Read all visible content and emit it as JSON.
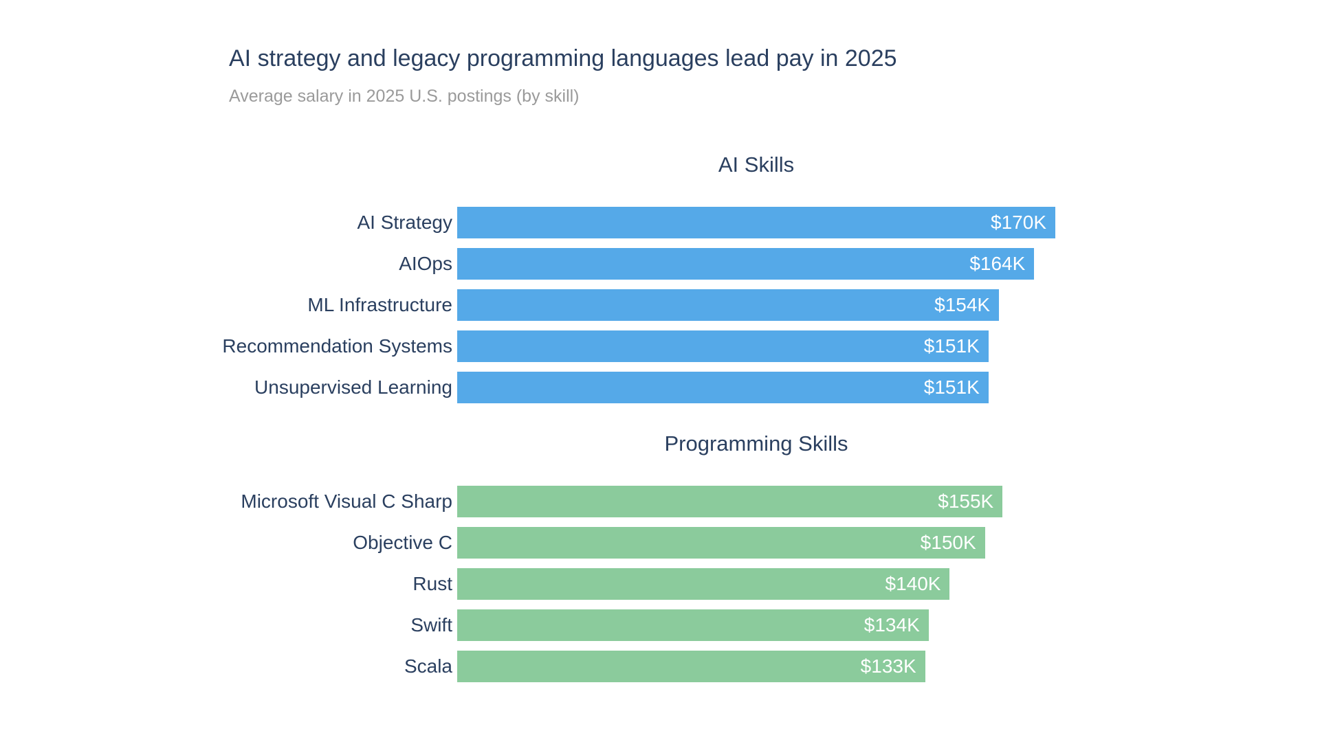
{
  "chart_data": {
    "type": "bar",
    "orientation": "horizontal",
    "title": "AI strategy and legacy programming languages lead pay in 2025",
    "subtitle": "Average salary in 2025 U.S. postings (by skill)",
    "value_unit": "USD thousands per year",
    "xlim": [
      0,
      170
    ],
    "grid": false,
    "legend": "none",
    "groups": [
      {
        "name": "AI Skills",
        "color": "#55a9e8",
        "bars": [
          {
            "label": "AI Strategy",
            "value": 170,
            "value_label": "$170K"
          },
          {
            "label": "AIOps",
            "value": 164,
            "value_label": "$164K"
          },
          {
            "label": "ML Infrastructure",
            "value": 154,
            "value_label": "$154K"
          },
          {
            "label": "Recommendation Systems",
            "value": 151,
            "value_label": "$151K"
          },
          {
            "label": "Unsupervised Learning",
            "value": 151,
            "value_label": "$151K"
          }
        ]
      },
      {
        "name": "Programming Skills",
        "color": "#8bcb9c",
        "bars": [
          {
            "label": "Microsoft Visual C Sharp",
            "value": 155,
            "value_label": "$155K"
          },
          {
            "label": "Objective C",
            "value": 150,
            "value_label": "$150K"
          },
          {
            "label": "Rust",
            "value": 140,
            "value_label": "$140K"
          },
          {
            "label": "Swift",
            "value": 134,
            "value_label": "$134K"
          },
          {
            "label": "Scala",
            "value": 133,
            "value_label": "$133K"
          }
        ]
      }
    ],
    "colors": {
      "title_text": "#2a3f5f",
      "subtitle_text": "#9a9a9a",
      "label_text": "#2a3f5f",
      "value_text": "#ffffff",
      "ai_bar": "#55a9e8",
      "programming_bar": "#8bcb9c",
      "background": "#ffffff"
    }
  }
}
